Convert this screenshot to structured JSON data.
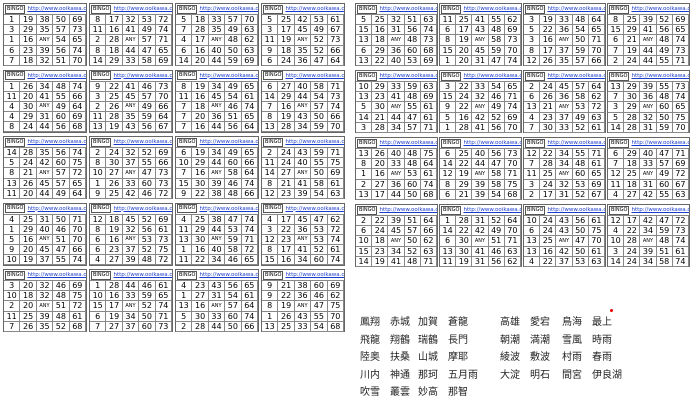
{
  "header_logo": "BINGO",
  "header_url": "http://www.ooikawa.com",
  "left_cards": [
    [
      [
        1,
        19,
        38,
        50,
        69
      ],
      [
        3,
        29,
        35,
        57,
        73
      ],
      [
        1,
        16,
        "ANY",
        54,
        65
      ],
      [
        6,
        23,
        39,
        56,
        74
      ],
      [
        7,
        18,
        32,
        51,
        70
      ]
    ],
    [
      [
        8,
        17,
        32,
        53,
        72
      ],
      [
        11,
        16,
        41,
        49,
        74
      ],
      [
        2,
        28,
        "ANY",
        57,
        71
      ],
      [
        8,
        18,
        44,
        47,
        65
      ],
      [
        14,
        29,
        33,
        58,
        69
      ]
    ],
    [
      [
        5,
        18,
        33,
        57,
        70
      ],
      [
        7,
        28,
        35,
        49,
        63
      ],
      [
        4,
        17,
        "ANY",
        48,
        62
      ],
      [
        6,
        16,
        40,
        50,
        63
      ],
      [
        14,
        20,
        44,
        59,
        69
      ]
    ],
    [
      [
        5,
        25,
        42,
        53,
        61
      ],
      [
        3,
        17,
        45,
        49,
        67
      ],
      [
        11,
        19,
        "ANY",
        52,
        73
      ],
      [
        9,
        18,
        35,
        52,
        66
      ],
      [
        6,
        24,
        36,
        47,
        64
      ]
    ],
    [
      [
        1,
        26,
        34,
        48,
        74
      ],
      [
        11,
        20,
        41,
        55,
        66
      ],
      [
        4,
        30,
        "ANY",
        49,
        64
      ],
      [
        4,
        29,
        31,
        60,
        69
      ],
      [
        8,
        24,
        44,
        56,
        68
      ]
    ],
    [
      [
        9,
        22,
        41,
        46,
        73
      ],
      [
        3,
        25,
        45,
        57,
        70
      ],
      [
        2,
        26,
        "ANY",
        49,
        66
      ],
      [
        11,
        28,
        35,
        59,
        64
      ],
      [
        13,
        19,
        43,
        56,
        67
      ]
    ],
    [
      [
        8,
        19,
        34,
        49,
        65
      ],
      [
        11,
        16,
        45,
        54,
        61
      ],
      [
        7,
        18,
        "ANY",
        46,
        74
      ],
      [
        7,
        20,
        36,
        51,
        65
      ],
      [
        7,
        16,
        44,
        56,
        64
      ]
    ],
    [
      [
        6,
        27,
        40,
        58,
        71
      ],
      [
        14,
        29,
        44,
        54,
        73
      ],
      [
        7,
        16,
        "ANY",
        57,
        74
      ],
      [
        8,
        19,
        43,
        50,
        66
      ],
      [
        13,
        28,
        34,
        59,
        70
      ]
    ],
    [
      [
        14,
        28,
        35,
        56,
        74
      ],
      [
        5,
        24,
        42,
        60,
        75
      ],
      [
        8,
        21,
        "ANY",
        57,
        72
      ],
      [
        13,
        26,
        45,
        57,
        65
      ],
      [
        11,
        20,
        44,
        49,
        64
      ]
    ],
    [
      [
        2,
        24,
        32,
        52,
        69
      ],
      [
        8,
        30,
        37,
        55,
        66
      ],
      [
        10,
        27,
        "ANY",
        47,
        73
      ],
      [
        1,
        26,
        33,
        60,
        73
      ],
      [
        9,
        25,
        42,
        46,
        72
      ]
    ],
    [
      [
        6,
        19,
        34,
        49,
        65
      ],
      [
        10,
        29,
        44,
        60,
        66
      ],
      [
        7,
        16,
        "ANY",
        58,
        64
      ],
      [
        15,
        30,
        39,
        46,
        74
      ],
      [
        9,
        22,
        38,
        48,
        66
      ]
    ],
    [
      [
        2,
        24,
        43,
        59,
        71
      ],
      [
        11,
        24,
        40,
        55,
        75
      ],
      [
        14,
        27,
        "ANY",
        50,
        69
      ],
      [
        8,
        21,
        41,
        58,
        61
      ],
      [
        12,
        23,
        39,
        54,
        63
      ]
    ],
    [
      [
        4,
        25,
        31,
        50,
        71
      ],
      [
        1,
        29,
        40,
        46,
        70
      ],
      [
        5,
        16,
        "ANY",
        51,
        70
      ],
      [
        9,
        20,
        45,
        47,
        66
      ],
      [
        10,
        19,
        37,
        55,
        74
      ]
    ],
    [
      [
        12,
        18,
        45,
        52,
        69
      ],
      [
        8,
        19,
        32,
        56,
        61
      ],
      [
        6,
        16,
        "ANY",
        53,
        73
      ],
      [
        6,
        23,
        37,
        52,
        75
      ],
      [
        4,
        27,
        39,
        48,
        72
      ]
    ],
    [
      [
        4,
        25,
        38,
        47,
        74
      ],
      [
        11,
        29,
        44,
        53,
        74
      ],
      [
        13,
        30,
        "ANY",
        59,
        71
      ],
      [
        1,
        16,
        40,
        58,
        72
      ],
      [
        11,
        22,
        34,
        46,
        65
      ]
    ],
    [
      [
        4,
        17,
        45,
        47,
        62
      ],
      [
        3,
        22,
        36,
        53,
        72
      ],
      [
        12,
        23,
        "ANY",
        53,
        74
      ],
      [
        8,
        17,
        41,
        52,
        61
      ],
      [
        15,
        16,
        34,
        60,
        74
      ]
    ],
    [
      [
        3,
        20,
        32,
        46,
        69
      ],
      [
        10,
        18,
        32,
        48,
        75
      ],
      [
        2,
        20,
        "ANY",
        51,
        72
      ],
      [
        11,
        25,
        39,
        48,
        61
      ],
      [
        7,
        26,
        35,
        52,
        68
      ]
    ],
    [
      [
        1,
        28,
        44,
        46,
        61
      ],
      [
        10,
        16,
        33,
        59,
        65
      ],
      [
        15,
        17,
        "ANY",
        52,
        74
      ],
      [
        6,
        19,
        34,
        50,
        71
      ],
      [
        7,
        27,
        37,
        60,
        73
      ]
    ],
    [
      [
        4,
        23,
        43,
        56,
        65
      ],
      [
        1,
        27,
        31,
        54,
        61
      ],
      [
        13,
        16,
        "ANY",
        57,
        64
      ],
      [
        5,
        30,
        33,
        60,
        74
      ],
      [
        2,
        28,
        44,
        50,
        66
      ]
    ],
    [
      [
        9,
        21,
        38,
        60,
        69
      ],
      [
        9,
        22,
        36,
        46,
        62
      ],
      [
        8,
        19,
        "ANY",
        47,
        75
      ],
      [
        1,
        26,
        43,
        55,
        70
      ],
      [
        13,
        25,
        33,
        54,
        68
      ]
    ]
  ],
  "right_cards": [
    [
      [
        5,
        25,
        32,
        51,
        63
      ],
      [
        15,
        16,
        31,
        56,
        74
      ],
      [
        13,
        18,
        "ANY",
        48,
        73
      ],
      [
        6,
        29,
        36,
        60,
        68
      ],
      [
        13,
        22,
        40,
        53,
        69
      ]
    ],
    [
      [
        11,
        25,
        41,
        55,
        62
      ],
      [
        6,
        17,
        43,
        48,
        69
      ],
      [
        8,
        19,
        "ANY",
        58,
        73
      ],
      [
        15,
        20,
        45,
        59,
        70
      ],
      [
        1,
        20,
        31,
        47,
        74
      ]
    ],
    [
      [
        3,
        19,
        33,
        48,
        64
      ],
      [
        5,
        22,
        36,
        54,
        65
      ],
      [
        3,
        16,
        "ANY",
        50,
        71
      ],
      [
        8,
        17,
        37,
        59,
        70
      ],
      [
        12,
        26,
        35,
        57,
        66
      ]
    ],
    [
      [
        8,
        25,
        39,
        52,
        69
      ],
      [
        15,
        29,
        41,
        56,
        65
      ],
      [
        6,
        21,
        "ANY",
        48,
        74
      ],
      [
        7,
        19,
        44,
        49,
        73
      ],
      [
        2,
        24,
        44,
        55,
        71
      ]
    ],
    [
      [
        10,
        29,
        33,
        59,
        63
      ],
      [
        13,
        23,
        41,
        48,
        69
      ],
      [
        5,
        30,
        "ANY",
        55,
        61
      ],
      [
        14,
        21,
        44,
        47,
        61
      ],
      [
        3,
        28,
        34,
        57,
        71
      ]
    ],
    [
      [
        3,
        22,
        33,
        54,
        65
      ],
      [
        15,
        24,
        32,
        46,
        71
      ],
      [
        9,
        22,
        "ANY",
        49,
        74
      ],
      [
        5,
        16,
        42,
        52,
        69
      ],
      [
        1,
        28,
        41,
        56,
        70
      ]
    ],
    [
      [
        2,
        24,
        45,
        57,
        64
      ],
      [
        6,
        26,
        36,
        58,
        62
      ],
      [
        13,
        21,
        "ANY",
        53,
        72
      ],
      [
        4,
        23,
        37,
        49,
        63
      ],
      [
        7,
        30,
        33,
        52,
        61
      ]
    ],
    [
      [
        13,
        29,
        39,
        55,
        73
      ],
      [
        7,
        30,
        36,
        48,
        74
      ],
      [
        3,
        29,
        "ANY",
        60,
        65
      ],
      [
        5,
        28,
        32,
        50,
        75
      ],
      [
        14,
        28,
        31,
        59,
        70
      ]
    ],
    [
      [
        13,
        26,
        40,
        48,
        75
      ],
      [
        8,
        20,
        33,
        48,
        64
      ],
      [
        1,
        16,
        "ANY",
        53,
        61
      ],
      [
        2,
        27,
        36,
        60,
        74
      ],
      [
        13,
        17,
        44,
        50,
        68
      ]
    ],
    [
      [
        6,
        25,
        40,
        56,
        73
      ],
      [
        14,
        22,
        44,
        47,
        70
      ],
      [
        12,
        19,
        "ANY",
        58,
        71
      ],
      [
        8,
        29,
        39,
        58,
        75
      ],
      [
        6,
        21,
        39,
        54,
        68
      ]
    ],
    [
      [
        12,
        22,
        34,
        55,
        71
      ],
      [
        7,
        28,
        34,
        48,
        61
      ],
      [
        11,
        25,
        "ANY",
        60,
        65
      ],
      [
        3,
        24,
        32,
        53,
        69
      ],
      [
        2,
        17,
        31,
        52,
        67
      ]
    ],
    [
      [
        6,
        29,
        40,
        47,
        71
      ],
      [
        7,
        18,
        33,
        57,
        69
      ],
      [
        12,
        25,
        "ANY",
        49,
        72
      ],
      [
        11,
        18,
        31,
        60,
        67
      ],
      [
        4,
        27,
        42,
        55,
        63
      ]
    ],
    [
      [
        2,
        22,
        39,
        51,
        64
      ],
      [
        6,
        24,
        45,
        57,
        66
      ],
      [
        10,
        18,
        "ANY",
        50,
        62
      ],
      [
        15,
        23,
        34,
        52,
        63
      ],
      [
        14,
        19,
        41,
        48,
        71
      ]
    ],
    [
      [
        1,
        28,
        31,
        52,
        64
      ],
      [
        14,
        22,
        42,
        49,
        70
      ],
      [
        6,
        30,
        "ANY",
        51,
        71
      ],
      [
        13,
        30,
        41,
        46,
        63
      ],
      [
        11,
        19,
        31,
        56,
        62
      ]
    ],
    [
      [
        10,
        24,
        43,
        56,
        61
      ],
      [
        6,
        24,
        43,
        50,
        75
      ],
      [
        13,
        25,
        "ANY",
        47,
        70
      ],
      [
        13,
        16,
        42,
        50,
        61
      ],
      [
        4,
        22,
        37,
        53,
        63
      ]
    ],
    [
      [
        12,
        17,
        42,
        47,
        72
      ],
      [
        4,
        22,
        34,
        59,
        73
      ],
      [
        10,
        28,
        "ANY",
        48,
        74
      ],
      [
        3,
        24,
        39,
        51,
        61
      ],
      [
        14,
        24,
        34,
        58,
        74
      ]
    ]
  ],
  "names": [
    [
      "鳳翔",
      "赤城",
      "加賀",
      "蒼龍",
      "高雄",
      "愛宕",
      "鳥海",
      "最上"
    ],
    [
      "飛龍",
      "翔鶴",
      "瑞鶴",
      "長門",
      "朝潮",
      "満潮",
      "雪風",
      "時雨"
    ],
    [
      "陸奥",
      "扶桑",
      "山城",
      "摩耶",
      "綾波",
      "敷波",
      "村雨",
      "春雨"
    ],
    [
      "川内",
      "神通",
      "那珂",
      "五月雨",
      "大淀",
      "明石",
      "間宮",
      "伊良湖"
    ],
    [
      "吹雪",
      "叢雲",
      "妙高",
      "那智"
    ]
  ]
}
